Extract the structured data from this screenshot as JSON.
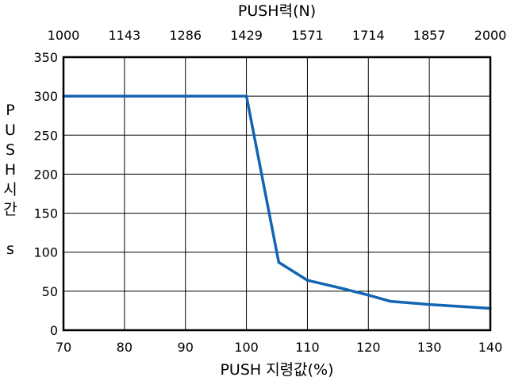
{
  "chart_data": {
    "type": "line",
    "x": [
      70,
      100,
      105.3,
      110,
      116,
      120,
      123.6,
      130,
      140
    ],
    "series": [
      {
        "values": [
          300,
          300,
          87,
          64,
          53,
          45,
          37,
          33,
          28
        ],
        "color": "#1464b4"
      }
    ],
    "xlabel": "PUSH 지령값(%)",
    "ylabel_chars": [
      "P",
      "U",
      "S",
      "H",
      "시",
      "간",
      "",
      "s"
    ],
    "top_axis_label": "PUSH력(N)",
    "xlim": [
      70,
      140
    ],
    "ylim": [
      0,
      350
    ],
    "x_ticks": [
      "70",
      "80",
      "90",
      "100",
      "110",
      "120",
      "130",
      "140"
    ],
    "y_ticks": [
      "0",
      "50",
      "100",
      "150",
      "200",
      "250",
      "300",
      "350"
    ],
    "top_ticks": [
      "1000",
      "1143",
      "1286",
      "1429",
      "1571",
      "1714",
      "1857",
      "2000"
    ],
    "grid": true,
    "line_color": "#1464b4",
    "grid_color": "#000000"
  }
}
